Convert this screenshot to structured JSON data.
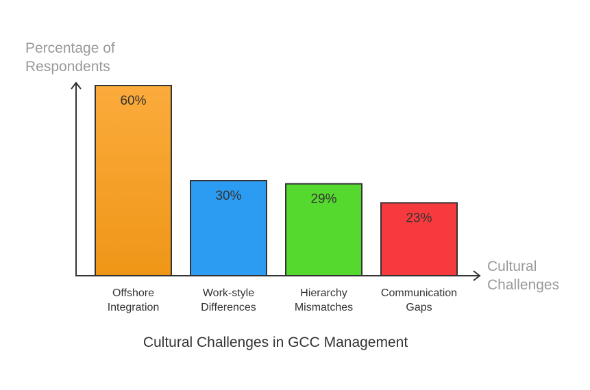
{
  "chart_data": {
    "type": "bar",
    "title": "Cultural Challenges in GCC Management",
    "y_label": "Percentage of Respondents",
    "x_label": "Cultural Challenges",
    "categories": [
      "Offshore Integration",
      "Work-style Differences",
      "Hierarchy Mismatches",
      "Communication Gaps"
    ],
    "values": [
      60,
      30,
      29,
      23
    ],
    "value_labels": [
      "60%",
      "30%",
      "29%",
      "23%"
    ],
    "colors": [
      "#f7a431",
      "#2b9cf2",
      "#55d92e",
      "#f73a3d"
    ],
    "ylim": [
      0,
      60
    ]
  }
}
